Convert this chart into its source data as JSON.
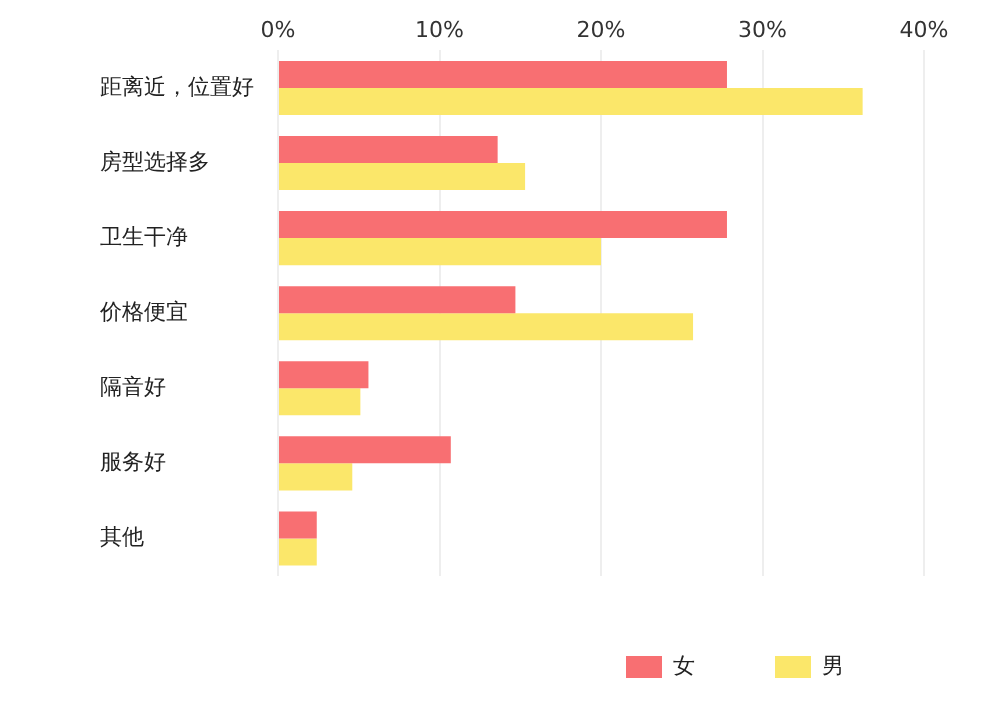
{
  "chart_data": {
    "type": "bar",
    "orientation": "horizontal",
    "categories": [
      "距离近，位置好",
      "房型选择多",
      "卫生干净",
      "价格便宜",
      "隔音好",
      "服务好",
      "其他"
    ],
    "series": [
      {
        "name": "女",
        "color": "#f86f72",
        "values": [
          27.8,
          13.6,
          27.8,
          14.7,
          5.6,
          10.7,
          2.4
        ]
      },
      {
        "name": "男",
        "color": "#fbe76a",
        "values": [
          36.2,
          15.3,
          20.0,
          25.7,
          5.1,
          4.6,
          2.4
        ]
      }
    ],
    "xlim": [
      0,
      40
    ],
    "xticks": [
      {
        "value": 0,
        "label": "0%"
      },
      {
        "value": 10,
        "label": "10%"
      },
      {
        "value": 20,
        "label": "20%"
      },
      {
        "value": 30,
        "label": "30%"
      },
      {
        "value": 40,
        "label": "40%"
      }
    ],
    "grid": "x",
    "legend": "bottom right"
  }
}
